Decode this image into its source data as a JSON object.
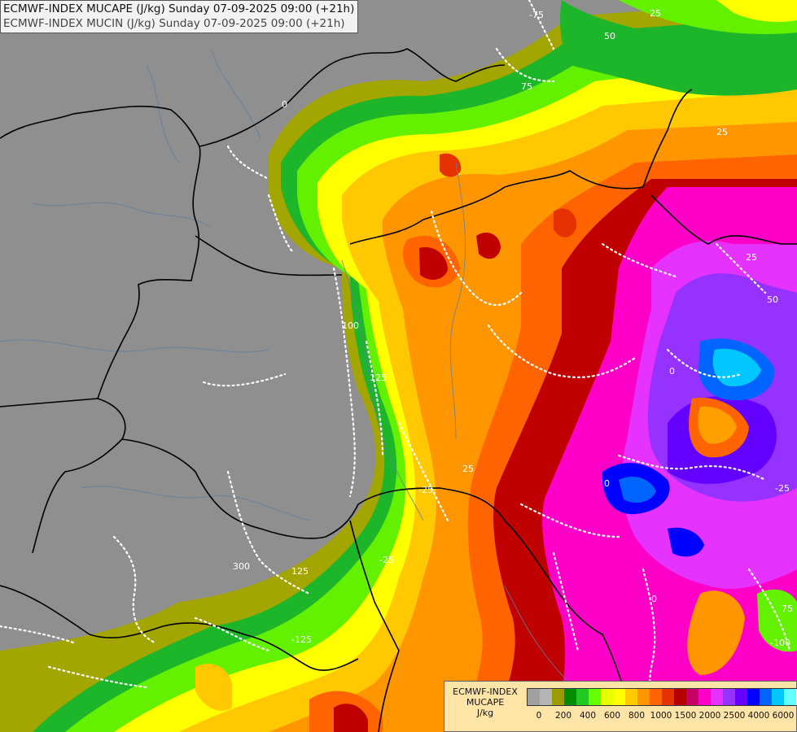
{
  "header": {
    "line1": "ECMWF-INDEX MUCAPE (J/kg) Sunday 07-09-2025 09:00 (+21h)",
    "line2": "ECMWF-INDEX MUCIN (J/kg) Sunday 07-09-2025 09:00 (+21h)"
  },
  "legend": {
    "label_line1": "ECMWF-INDEX",
    "label_line2": "MUCAPE",
    "label_line3": "J/kg",
    "colors": [
      "#a0a0a0",
      "#b4b4b4",
      "#9c9c00",
      "#008c00",
      "#20c820",
      "#64ff00",
      "#e6ff00",
      "#ffff00",
      "#ffc800",
      "#ff9600",
      "#ff6400",
      "#e63200",
      "#b40000",
      "#c80064",
      "#ff00c8",
      "#e632ff",
      "#9632ff",
      "#6400ff",
      "#0000ff",
      "#0064ff",
      "#00c8ff",
      "#64ffff",
      "#ffffff"
    ],
    "ticks": [
      "0",
      "200",
      "400",
      "600",
      "800",
      "1000",
      "1500",
      "2000",
      "2500",
      "4000",
      "6000"
    ]
  },
  "contour_labels": [
    "0",
    "0",
    "0",
    "25",
    "25",
    "25",
    "-25",
    "50",
    "75",
    "100",
    "125",
    "125",
    "-25",
    "-25",
    "25",
    "-100",
    "-75",
    "75",
    "50",
    "300",
    "-125",
    "0"
  ]
}
